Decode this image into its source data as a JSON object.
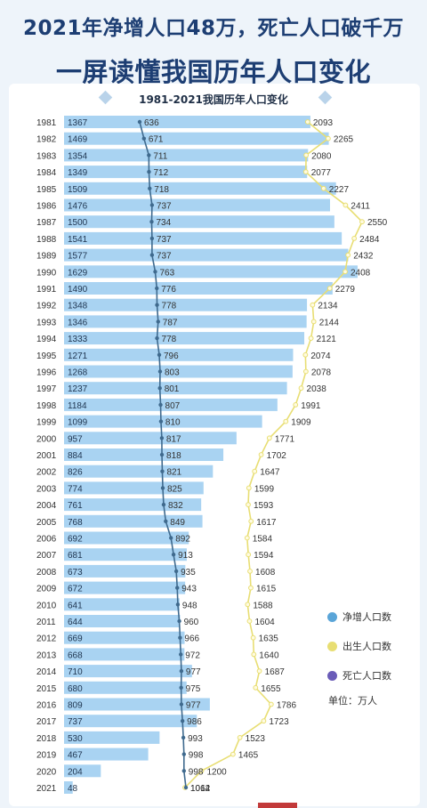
{
  "header": {
    "title_line1": "2021年净增人口48万，死亡人口破千万",
    "title_line2": "一屏读懂我国历年人口变化"
  },
  "legend": {
    "items": [
      {
        "label": "净增人口数",
        "color": "#5aa5d8"
      },
      {
        "label": "出生人口数",
        "color": "#e8de73"
      },
      {
        "label": "死亡人口数",
        "color": "#6a5cb8"
      }
    ],
    "unit_label": "单位：万人"
  },
  "chart_data": {
    "type": "bar",
    "title": "1981-2021我国历年人口变化",
    "categories": [
      "1981",
      "1982",
      "1983",
      "1984",
      "1985",
      "1986",
      "1987",
      "1988",
      "1989",
      "1990",
      "1991",
      "1992",
      "1993",
      "1994",
      "1995",
      "1996",
      "1997",
      "1998",
      "1999",
      "2000",
      "2001",
      "2002",
      "2003",
      "2004",
      "2005",
      "2006",
      "2007",
      "2008",
      "2009",
      "2010",
      "2011",
      "2012",
      "2013",
      "2014",
      "2015",
      "2016",
      "2017",
      "2018",
      "2019",
      "2020",
      "2021"
    ],
    "series": [
      {
        "name": "净增人口数",
        "render": "bar",
        "color": "#a9d3f2",
        "values": [
          1367,
          1469,
          1354,
          1349,
          1509,
          1476,
          1500,
          1541,
          1577,
          1629,
          1490,
          1348,
          1346,
          1333,
          1271,
          1268,
          1237,
          1184,
          1099,
          957,
          884,
          826,
          774,
          761,
          768,
          692,
          681,
          673,
          672,
          641,
          644,
          669,
          668,
          710,
          680,
          809,
          737,
          530,
          467,
          204,
          48
        ]
      },
      {
        "name": "死亡人口数",
        "render": "line",
        "color": "#3f6a8e",
        "values": [
          636,
          671,
          711,
          712,
          718,
          737,
          734,
          737,
          737,
          763,
          776,
          778,
          787,
          778,
          796,
          803,
          801,
          807,
          810,
          817,
          818,
          821,
          825,
          832,
          849,
          892,
          913,
          935,
          943,
          948,
          960,
          966,
          972,
          977,
          975,
          977,
          986,
          993,
          998,
          998,
          1014
        ]
      },
      {
        "name": "出生人口数",
        "render": "line",
        "color": "#e8de73",
        "values": [
          2093,
          2265,
          2080,
          2077,
          2227,
          2411,
          2550,
          2484,
          2432,
          2408,
          2279,
          2134,
          2144,
          2121,
          2074,
          2078,
          2038,
          1991,
          1909,
          1771,
          1702,
          1647,
          1599,
          1593,
          1617,
          1584,
          1594,
          1608,
          1615,
          1588,
          1604,
          1635,
          1640,
          1687,
          1655,
          1786,
          1723,
          1523,
          1465,
          1200,
          1062
        ]
      }
    ],
    "legend_position": "right"
  }
}
